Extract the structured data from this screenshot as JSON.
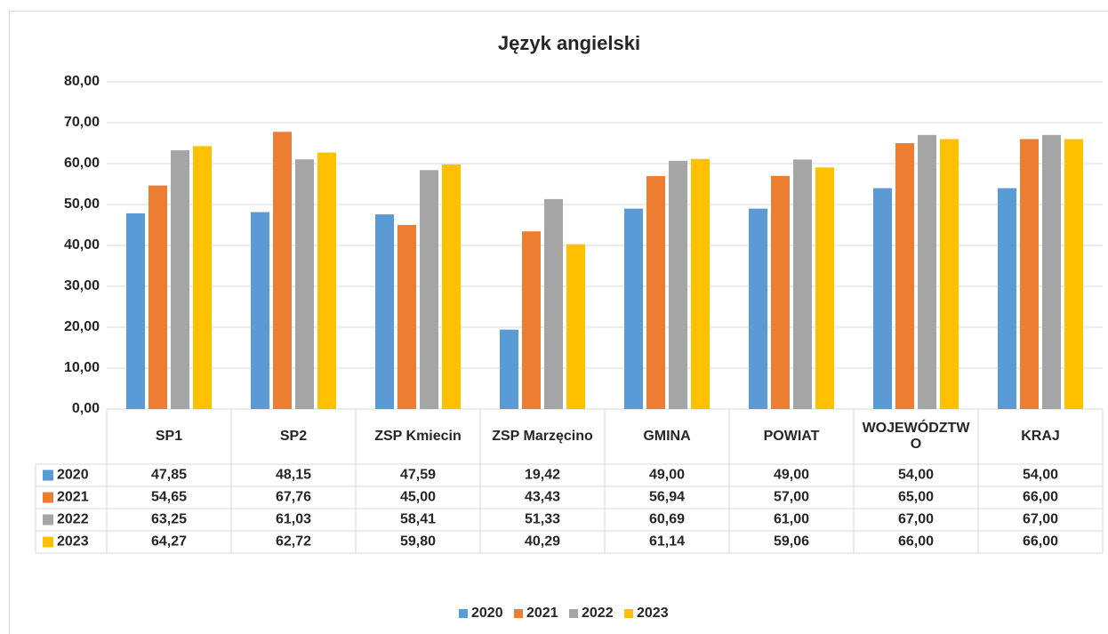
{
  "chart_data": {
    "type": "bar",
    "title": "Język angielski",
    "categories": [
      "SP1",
      "SP2",
      "ZSP Kmiecin",
      "ZSP Marzęcino",
      "GMINA",
      "POWIAT",
      "WOJEWÓDZTWO",
      "KRAJ"
    ],
    "series": [
      {
        "name": "2020",
        "color": "#5b9bd5",
        "values": [
          47.85,
          48.15,
          47.59,
          19.42,
          49.0,
          49.0,
          54.0,
          54.0
        ],
        "value_labels": [
          "47,85",
          "48,15",
          "47,59",
          "19,42",
          "49,00",
          "49,00",
          "54,00",
          "54,00"
        ]
      },
      {
        "name": "2021",
        "color": "#ed7d31",
        "values": [
          54.65,
          67.76,
          45.0,
          43.43,
          56.94,
          57.0,
          65.0,
          66.0
        ],
        "value_labels": [
          "54,65",
          "67,76",
          "45,00",
          "43,43",
          "56,94",
          "57,00",
          "65,00",
          "66,00"
        ]
      },
      {
        "name": "2022",
        "color": "#a5a5a5",
        "values": [
          63.25,
          61.03,
          58.41,
          51.33,
          60.69,
          61.0,
          67.0,
          67.0
        ],
        "value_labels": [
          "63,25",
          "61,03",
          "58,41",
          "51,33",
          "60,69",
          "61,00",
          "67,00",
          "67,00"
        ]
      },
      {
        "name": "2023",
        "color": "#ffc000",
        "values": [
          64.27,
          62.72,
          59.8,
          40.29,
          61.14,
          59.06,
          66.0,
          66.0
        ],
        "value_labels": [
          "64,27",
          "62,72",
          "59,80",
          "40,29",
          "61,14",
          "59,06",
          "66,00",
          "66,00"
        ]
      }
    ],
    "ylim": [
      0,
      80
    ],
    "yticks": [
      {
        "value": 0,
        "label": "0,00"
      },
      {
        "value": 10,
        "label": "10,00"
      },
      {
        "value": 20,
        "label": "20,00"
      },
      {
        "value": 30,
        "label": "30,00"
      },
      {
        "value": 40,
        "label": "40,00"
      },
      {
        "value": 50,
        "label": "50,00"
      },
      {
        "value": 60,
        "label": "60,00"
      },
      {
        "value": 70,
        "label": "70,00"
      },
      {
        "value": 80,
        "label": "80,00"
      }
    ],
    "grid": true,
    "legend": "bottom"
  }
}
